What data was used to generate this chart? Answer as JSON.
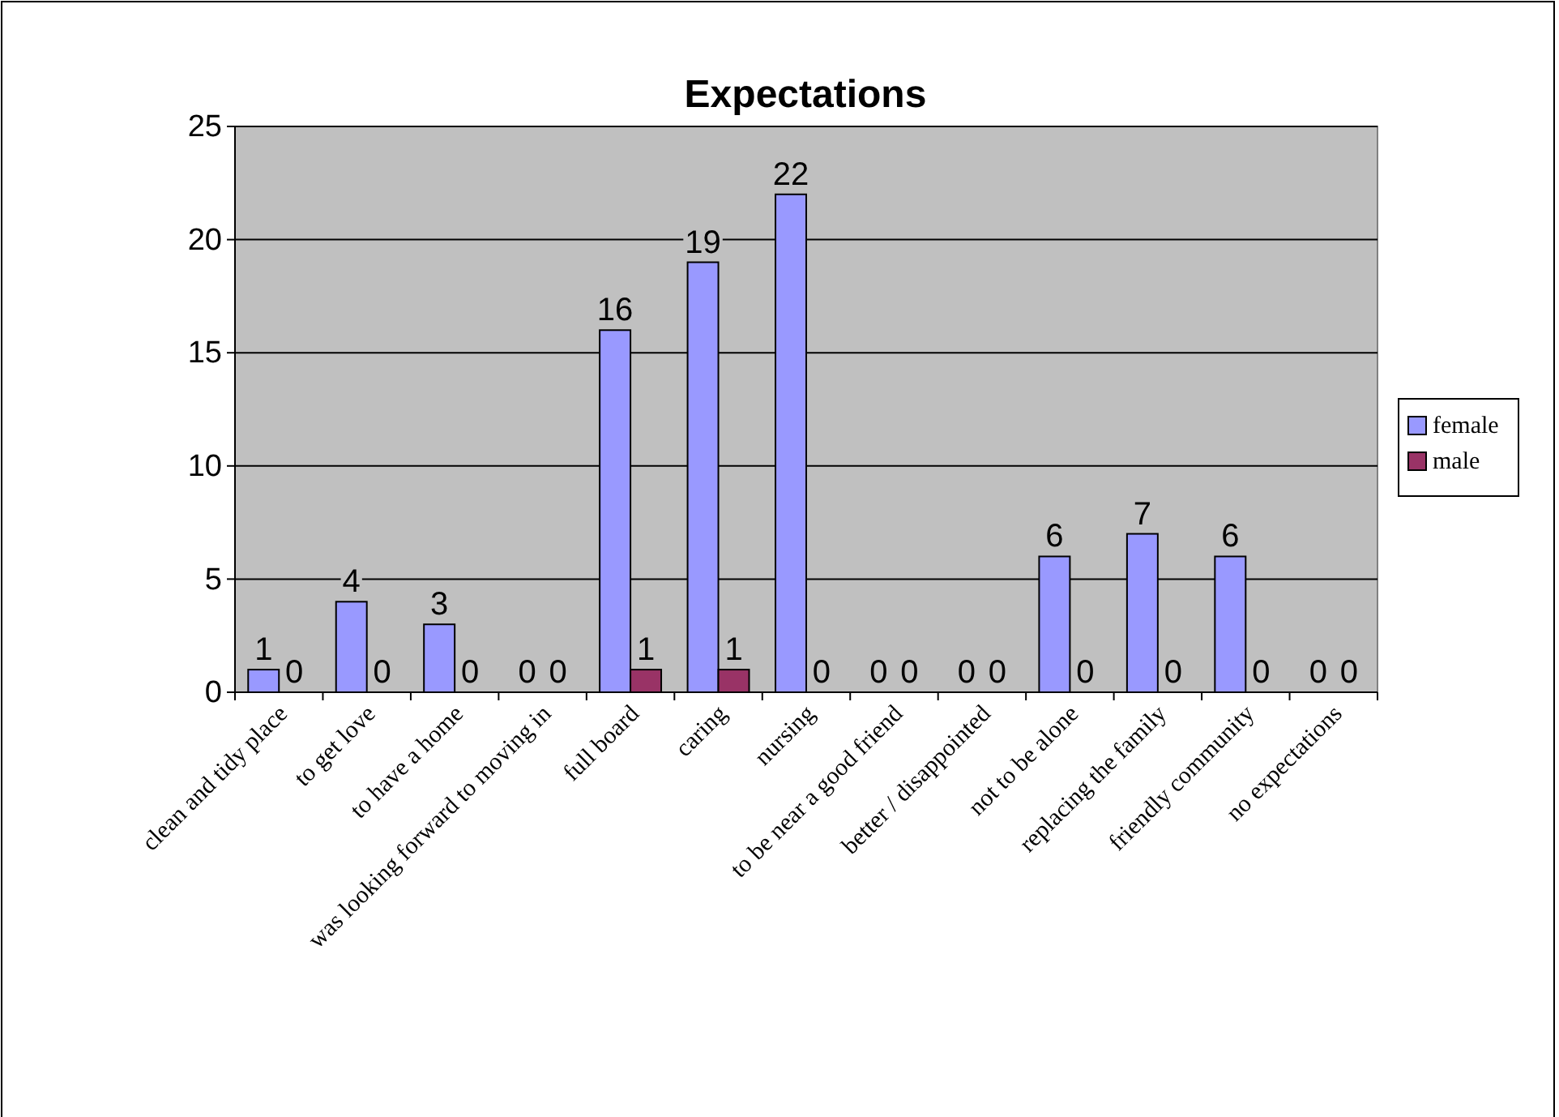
{
  "chart_data": {
    "type": "bar",
    "title": "Expectations",
    "categories": [
      "clean and tidy place",
      "to get love",
      "to have a home",
      "was looking forward to moving in",
      "full board",
      "caring",
      "nursing",
      "to be near a good friend",
      "better / disappointed",
      "not to be alone",
      "replacing the family",
      "friendly community",
      "no expectations"
    ],
    "series": [
      {
        "name": "female",
        "color": "#9999ff",
        "values": [
          1,
          4,
          3,
          0,
          16,
          19,
          22,
          0,
          0,
          6,
          7,
          6,
          0
        ]
      },
      {
        "name": "male",
        "color": "#993366",
        "values": [
          0,
          0,
          0,
          0,
          1,
          1,
          0,
          0,
          0,
          0,
          0,
          0,
          0
        ]
      }
    ],
    "ylim": [
      0,
      25
    ],
    "yticks": [
      0,
      5,
      10,
      15,
      20,
      25
    ],
    "grid": "y",
    "legend": "right",
    "data_labels": true
  }
}
